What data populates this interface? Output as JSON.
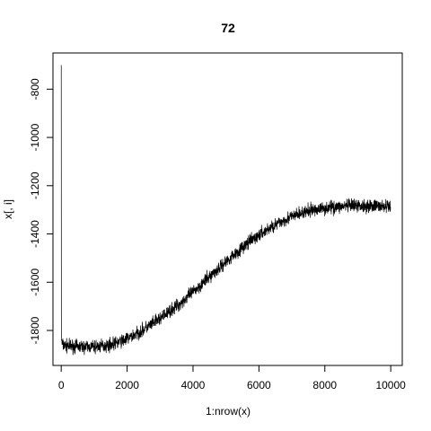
{
  "chart_data": {
    "type": "line",
    "title": "72",
    "xlabel": "1:nrow(x)",
    "ylabel": "x[, i]",
    "xlim": [
      -250,
      10350
    ],
    "ylim": [
      -1945,
      -650
    ],
    "xticks": [
      0,
      2000,
      4000,
      6000,
      8000,
      10000
    ],
    "yticks": [
      -1800,
      -1600,
      -1400,
      -1200,
      -1000,
      -800
    ],
    "grid": false,
    "series": [
      {
        "line_color": "#000000",
        "x": [
          1,
          5,
          20,
          60,
          100,
          200,
          400,
          700,
          1000,
          1300,
          1600,
          2000,
          2400,
          2800,
          3200,
          3600,
          4000,
          4400,
          4800,
          5200,
          5600,
          6000,
          6400,
          6800,
          7200,
          7600,
          8000,
          8400,
          8800,
          9200,
          9600,
          10000
        ],
        "y": [
          -700,
          -1830,
          -1855,
          -1860,
          -1862,
          -1864,
          -1866,
          -1868,
          -1868,
          -1864,
          -1855,
          -1835,
          -1805,
          -1770,
          -1730,
          -1690,
          -1640,
          -1590,
          -1540,
          -1490,
          -1445,
          -1405,
          -1370,
          -1340,
          -1318,
          -1302,
          -1292,
          -1287,
          -1284,
          -1283,
          -1284,
          -1288
        ],
        "noise": 25
      }
    ]
  }
}
